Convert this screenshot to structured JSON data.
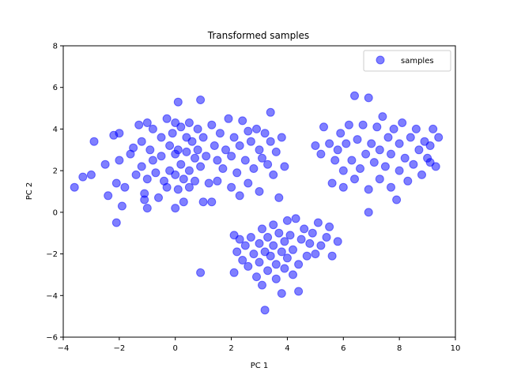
{
  "chart_data": {
    "type": "scatter",
    "title": "Transformed samples",
    "xlabel": "PC 1",
    "ylabel": "PC 2",
    "xlim": [
      -4,
      10
    ],
    "ylim": [
      -6,
      8
    ],
    "xticks": [
      -4,
      -2,
      0,
      2,
      4,
      6,
      8,
      10
    ],
    "yticks": [
      -6,
      -4,
      -2,
      0,
      2,
      4,
      6,
      8
    ],
    "grid": false,
    "legend": {
      "position": "top-right",
      "entries": [
        "samples"
      ]
    },
    "series": [
      {
        "name": "samples",
        "color": "#0000ff",
        "points": [
          [
            -3.6,
            1.2
          ],
          [
            -3.3,
            1.7
          ],
          [
            -3.0,
            1.8
          ],
          [
            -2.9,
            3.4
          ],
          [
            -2.5,
            2.3
          ],
          [
            -2.4,
            0.8
          ],
          [
            -2.2,
            3.7
          ],
          [
            -2.1,
            1.4
          ],
          [
            -2.1,
            -0.5
          ],
          [
            -2.0,
            3.8
          ],
          [
            -2.0,
            2.5
          ],
          [
            -1.9,
            0.3
          ],
          [
            -1.8,
            1.2
          ],
          [
            -1.6,
            2.8
          ],
          [
            -1.5,
            3.1
          ],
          [
            -1.4,
            1.8
          ],
          [
            -1.3,
            4.2
          ],
          [
            -1.2,
            3.4
          ],
          [
            -1.2,
            2.2
          ],
          [
            -1.1,
            0.9
          ],
          [
            -1.1,
            0.6
          ],
          [
            -1.0,
            4.3
          ],
          [
            -1.0,
            1.6
          ],
          [
            -1.0,
            0.2
          ],
          [
            -0.9,
            3.0
          ],
          [
            -0.8,
            4.0
          ],
          [
            -0.8,
            2.5
          ],
          [
            -0.7,
            1.9
          ],
          [
            -0.6,
            0.7
          ],
          [
            -0.5,
            3.6
          ],
          [
            -0.5,
            2.7
          ],
          [
            -0.4,
            1.5
          ],
          [
            -0.3,
            4.5
          ],
          [
            -0.3,
            1.2
          ],
          [
            -0.2,
            3.2
          ],
          [
            -0.2,
            2.0
          ],
          [
            -0.1,
            3.8
          ],
          [
            0.0,
            4.3
          ],
          [
            0.0,
            2.8
          ],
          [
            0.0,
            1.8
          ],
          [
            0.0,
            0.2
          ],
          [
            0.1,
            5.3
          ],
          [
            0.1,
            3.0
          ],
          [
            0.1,
            1.1
          ],
          [
            0.2,
            4.1
          ],
          [
            0.2,
            2.3
          ],
          [
            0.3,
            1.6
          ],
          [
            0.3,
            0.5
          ],
          [
            0.4,
            3.6
          ],
          [
            0.4,
            2.9
          ],
          [
            0.5,
            4.3
          ],
          [
            0.5,
            2.0
          ],
          [
            0.5,
            1.2
          ],
          [
            0.6,
            3.4
          ],
          [
            0.7,
            2.6
          ],
          [
            0.7,
            1.5
          ],
          [
            0.8,
            4.0
          ],
          [
            0.8,
            3.0
          ],
          [
            0.9,
            5.4
          ],
          [
            0.9,
            2.2
          ],
          [
            0.9,
            -2.9
          ],
          [
            1.0,
            0.5
          ],
          [
            1.0,
            3.6
          ],
          [
            1.1,
            2.7
          ],
          [
            1.2,
            1.4
          ],
          [
            1.3,
            4.2
          ],
          [
            1.3,
            0.5
          ],
          [
            1.4,
            3.2
          ],
          [
            1.5,
            2.5
          ],
          [
            1.5,
            1.5
          ],
          [
            1.6,
            3.8
          ],
          [
            1.7,
            2.1
          ],
          [
            1.8,
            3.0
          ],
          [
            1.9,
            4.5
          ],
          [
            2.0,
            1.2
          ],
          [
            2.0,
            2.7
          ],
          [
            2.1,
            3.6
          ],
          [
            2.1,
            -2.9
          ],
          [
            2.2,
            1.9
          ],
          [
            2.3,
            3.2
          ],
          [
            2.3,
            0.8
          ],
          [
            2.4,
            4.4
          ],
          [
            2.5,
            2.5
          ],
          [
            2.6,
            3.9
          ],
          [
            2.6,
            1.4
          ],
          [
            2.7,
            3.4
          ],
          [
            2.8,
            2.1
          ],
          [
            2.9,
            4.0
          ],
          [
            3.0,
            3.0
          ],
          [
            3.0,
            1.0
          ],
          [
            3.1,
            2.6
          ],
          [
            3.2,
            3.8
          ],
          [
            3.3,
            2.3
          ],
          [
            3.4,
            3.4
          ],
          [
            3.4,
            4.8
          ],
          [
            3.5,
            1.8
          ],
          [
            3.6,
            2.9
          ],
          [
            3.7,
            0.7
          ],
          [
            3.8,
            3.6
          ],
          [
            3.9,
            2.2
          ],
          [
            2.1,
            -1.1
          ],
          [
            2.2,
            -1.9
          ],
          [
            2.3,
            -1.3
          ],
          [
            2.4,
            -2.3
          ],
          [
            2.5,
            -1.6
          ],
          [
            2.6,
            -2.6
          ],
          [
            2.7,
            -1.2
          ],
          [
            2.8,
            -2.0
          ],
          [
            2.9,
            -3.1
          ],
          [
            3.0,
            -1.5
          ],
          [
            3.0,
            -2.4
          ],
          [
            3.1,
            -0.8
          ],
          [
            3.1,
            -3.5
          ],
          [
            3.2,
            -1.9
          ],
          [
            3.2,
            -4.7
          ],
          [
            3.3,
            -1.2
          ],
          [
            3.3,
            -2.8
          ],
          [
            3.4,
            -2.1
          ],
          [
            3.5,
            -0.6
          ],
          [
            3.5,
            -1.6
          ],
          [
            3.6,
            -3.2
          ],
          [
            3.6,
            -2.5
          ],
          [
            3.7,
            -1.0
          ],
          [
            3.8,
            -1.9
          ],
          [
            3.8,
            -3.9
          ],
          [
            3.9,
            -1.4
          ],
          [
            3.9,
            -2.7
          ],
          [
            4.0,
            -0.4
          ],
          [
            4.0,
            -2.2
          ],
          [
            4.1,
            -1.1
          ],
          [
            4.2,
            -3.0
          ],
          [
            4.2,
            -1.8
          ],
          [
            4.3,
            -0.3
          ],
          [
            4.4,
            -2.5
          ],
          [
            4.4,
            -3.8
          ],
          [
            4.5,
            -1.3
          ],
          [
            4.6,
            -0.8
          ],
          [
            4.7,
            -2.1
          ],
          [
            4.8,
            -1.5
          ],
          [
            4.9,
            -1.0
          ],
          [
            5.0,
            -2.0
          ],
          [
            5.1,
            -0.5
          ],
          [
            5.2,
            -1.6
          ],
          [
            5.4,
            -1.2
          ],
          [
            5.6,
            -2.1
          ],
          [
            5.8,
            -1.4
          ],
          [
            5.5,
            -0.7
          ],
          [
            5.0,
            3.2
          ],
          [
            5.2,
            2.8
          ],
          [
            5.3,
            4.1
          ],
          [
            5.5,
            3.3
          ],
          [
            5.6,
            1.4
          ],
          [
            5.7,
            2.5
          ],
          [
            5.8,
            3.0
          ],
          [
            5.9,
            3.8
          ],
          [
            6.0,
            2.0
          ],
          [
            6.0,
            1.2
          ],
          [
            6.1,
            3.3
          ],
          [
            6.2,
            4.2
          ],
          [
            6.3,
            2.5
          ],
          [
            6.4,
            5.6
          ],
          [
            6.4,
            1.6
          ],
          [
            6.5,
            3.5
          ],
          [
            6.6,
            2.1
          ],
          [
            6.7,
            4.2
          ],
          [
            6.8,
            2.8
          ],
          [
            6.9,
            5.5
          ],
          [
            6.9,
            1.1
          ],
          [
            6.9,
            0.0
          ],
          [
            7.0,
            3.3
          ],
          [
            7.1,
            2.4
          ],
          [
            7.2,
            4.1
          ],
          [
            7.3,
            1.6
          ],
          [
            7.3,
            3.0
          ],
          [
            7.4,
            4.6
          ],
          [
            7.5,
            2.2
          ],
          [
            7.6,
            3.6
          ],
          [
            7.7,
            1.2
          ],
          [
            7.7,
            2.8
          ],
          [
            7.8,
            4.0
          ],
          [
            7.9,
            0.6
          ],
          [
            8.0,
            3.3
          ],
          [
            8.0,
            2.0
          ],
          [
            8.1,
            4.3
          ],
          [
            8.2,
            2.6
          ],
          [
            8.3,
            1.5
          ],
          [
            8.4,
            3.6
          ],
          [
            8.5,
            2.3
          ],
          [
            8.6,
            4.0
          ],
          [
            8.7,
            3.0
          ],
          [
            8.8,
            1.8
          ],
          [
            8.9,
            3.4
          ],
          [
            9.0,
            2.6
          ],
          [
            9.1,
            3.2
          ],
          [
            9.2,
            4.0
          ],
          [
            9.3,
            2.2
          ],
          [
            9.4,
            3.6
          ],
          [
            9.1,
            2.4
          ]
        ]
      }
    ]
  }
}
